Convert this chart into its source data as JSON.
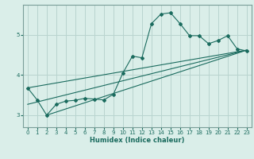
{
  "xlabel": "Humidex (Indice chaleur)",
  "ylabel": "",
  "bg_color": "#daeee9",
  "grid_color": "#b8d4cf",
  "line_color": "#1a6b5e",
  "xlim": [
    -0.5,
    23.5
  ],
  "ylim": [
    2.7,
    5.75
  ],
  "yticks": [
    3,
    4,
    5
  ],
  "xticks": [
    0,
    1,
    2,
    3,
    4,
    5,
    6,
    7,
    8,
    9,
    10,
    11,
    12,
    13,
    14,
    15,
    16,
    17,
    18,
    19,
    20,
    21,
    22,
    23
  ],
  "series1_x": [
    0,
    1,
    2,
    3,
    4,
    5,
    6,
    7,
    8,
    9,
    10,
    11,
    12,
    13,
    14,
    15,
    16,
    17,
    18,
    19,
    20,
    21,
    22,
    23
  ],
  "series1_y": [
    3.68,
    3.38,
    3.0,
    3.27,
    3.35,
    3.37,
    3.42,
    3.4,
    3.38,
    3.52,
    4.05,
    4.47,
    4.43,
    5.28,
    5.52,
    5.55,
    5.28,
    4.98,
    4.98,
    4.78,
    4.86,
    4.98,
    4.65,
    4.6
  ],
  "series2_x": [
    0,
    23
  ],
  "series2_y": [
    3.27,
    4.62
  ],
  "series3_x": [
    2,
    23
  ],
  "series3_y": [
    3.0,
    4.62
  ],
  "series4_x": [
    0,
    23
  ],
  "series4_y": [
    3.68,
    4.62
  ]
}
